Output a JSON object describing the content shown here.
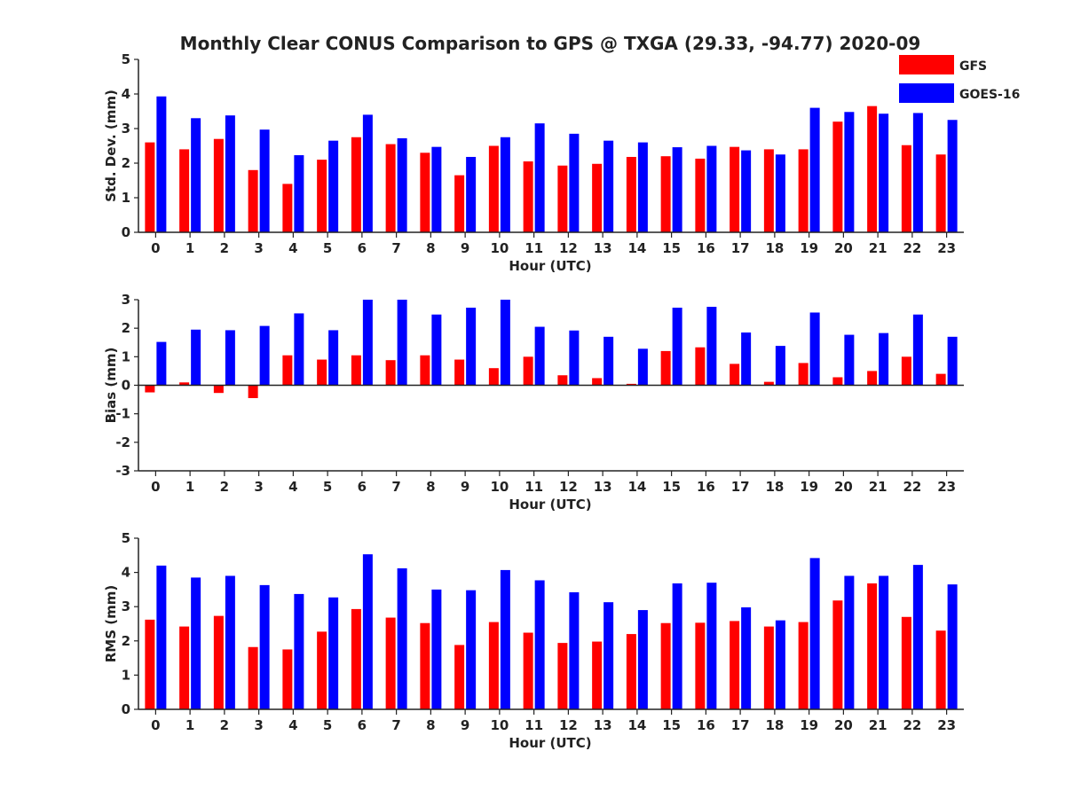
{
  "figure_title": "Monthly Clear CONUS Comparison to GPS @ TXGA (29.33, -94.77) 2020-09",
  "legend": [
    {
      "label": "GFS",
      "color": "#ff0000"
    },
    {
      "label": "GOES-16",
      "color": "#0000ff"
    }
  ],
  "chart_data": [
    {
      "type": "bar",
      "title": "Monthly Clear CONUS Comparison to GPS @ TXGA (29.33, -94.77) 2020-09",
      "xlabel": "Hour (UTC)",
      "ylabel": "Std. Dev. (mm)",
      "ylim": [
        0,
        5
      ],
      "yticks": [
        0,
        1,
        2,
        3,
        4,
        5
      ],
      "categories": [
        "0",
        "1",
        "2",
        "3",
        "4",
        "5",
        "6",
        "7",
        "8",
        "9",
        "10",
        "11",
        "12",
        "13",
        "14",
        "15",
        "16",
        "17",
        "18",
        "19",
        "20",
        "21",
        "22",
        "23"
      ],
      "series": [
        {
          "name": "GFS",
          "color": "#ff0000",
          "values": [
            2.6,
            2.4,
            2.7,
            1.8,
            1.4,
            2.1,
            2.75,
            2.55,
            2.3,
            1.65,
            2.5,
            2.05,
            1.93,
            1.98,
            2.18,
            2.2,
            2.13,
            2.47,
            2.4,
            2.4,
            3.2,
            3.65,
            2.52,
            2.25
          ]
        },
        {
          "name": "GOES-16",
          "color": "#0000ff",
          "values": [
            3.93,
            3.3,
            3.38,
            2.97,
            2.23,
            2.65,
            3.4,
            2.72,
            2.47,
            2.18,
            2.75,
            3.15,
            2.85,
            2.65,
            2.6,
            2.46,
            2.5,
            2.37,
            2.25,
            3.6,
            3.48,
            3.43,
            3.45,
            3.25
          ]
        }
      ]
    },
    {
      "type": "bar",
      "title": "",
      "xlabel": "Hour (UTC)",
      "ylabel": "Bias (mm)",
      "ylim": [
        -3,
        3
      ],
      "yticks": [
        -3,
        -2,
        -1,
        0,
        1,
        2,
        3
      ],
      "categories": [
        "0",
        "1",
        "2",
        "3",
        "4",
        "5",
        "6",
        "7",
        "8",
        "9",
        "10",
        "11",
        "12",
        "13",
        "14",
        "15",
        "16",
        "17",
        "18",
        "19",
        "20",
        "21",
        "22",
        "23"
      ],
      "series": [
        {
          "name": "GFS",
          "color": "#ff0000",
          "values": [
            -0.25,
            0.1,
            -0.27,
            -0.45,
            1.05,
            0.9,
            1.05,
            0.88,
            1.05,
            0.9,
            0.6,
            1.0,
            0.35,
            0.25,
            0.05,
            1.2,
            1.33,
            0.75,
            0.12,
            0.78,
            0.28,
            0.5,
            1.0,
            0.4
          ]
        },
        {
          "name": "GOES-16",
          "color": "#0000ff",
          "values": [
            1.52,
            1.95,
            1.93,
            2.08,
            2.52,
            1.93,
            3.0,
            3.0,
            2.48,
            2.72,
            3.0,
            2.05,
            1.92,
            1.7,
            1.28,
            2.72,
            2.75,
            1.85,
            1.38,
            2.55,
            1.77,
            1.83,
            2.48,
            1.7
          ]
        }
      ]
    },
    {
      "type": "bar",
      "title": "",
      "xlabel": "Hour (UTC)",
      "ylabel": "RMS (mm)",
      "ylim": [
        0,
        5
      ],
      "yticks": [
        0,
        1,
        2,
        3,
        4,
        5
      ],
      "categories": [
        "0",
        "1",
        "2",
        "3",
        "4",
        "5",
        "6",
        "7",
        "8",
        "9",
        "10",
        "11",
        "12",
        "13",
        "14",
        "15",
        "16",
        "17",
        "18",
        "19",
        "20",
        "21",
        "22",
        "23"
      ],
      "series": [
        {
          "name": "GFS",
          "color": "#ff0000",
          "values": [
            2.62,
            2.42,
            2.73,
            1.82,
            1.75,
            2.27,
            2.93,
            2.68,
            2.52,
            1.88,
            2.55,
            2.24,
            1.94,
            1.98,
            2.2,
            2.52,
            2.53,
            2.58,
            2.42,
            2.55,
            3.18,
            3.68,
            2.7,
            2.3
          ]
        },
        {
          "name": "GOES-16",
          "color": "#0000ff",
          "values": [
            4.2,
            3.85,
            3.9,
            3.63,
            3.37,
            3.27,
            4.53,
            4.12,
            3.5,
            3.48,
            4.07,
            3.77,
            3.42,
            3.13,
            2.9,
            3.68,
            3.7,
            2.98,
            2.6,
            4.42,
            3.9,
            3.9,
            4.22,
            3.65
          ]
        }
      ]
    }
  ]
}
